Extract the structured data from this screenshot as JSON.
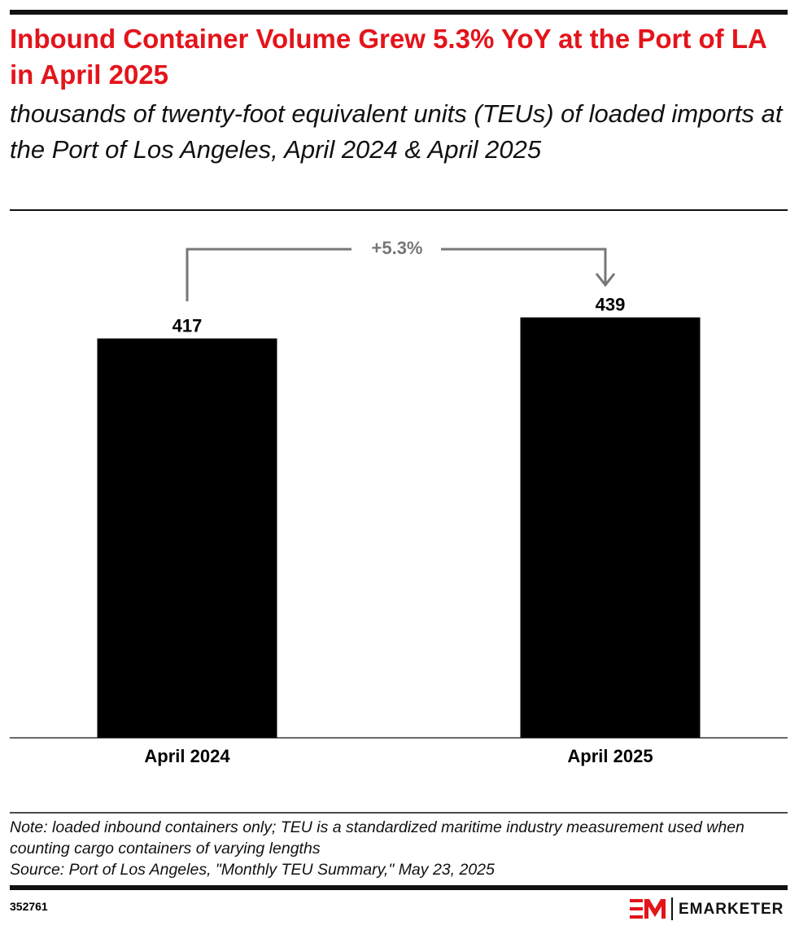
{
  "chart_data": {
    "type": "bar",
    "title": "Inbound Container Volume Grew 5.3% YoY at the Port of LA in April 2025",
    "subtitle": "thousands of twenty-foot equivalent units (TEUs) of loaded imports at the Port of Los Angeles, April 2024 & April 2025",
    "categories": [
      "April 2024",
      "April 2025"
    ],
    "values": [
      417,
      439
    ],
    "color": "#000000",
    "ylim": [
      0,
      500
    ],
    "annotations": [
      "+5.3%"
    ],
    "note": "Note: loaded inbound containers only; TEU is a standardized maritime industry measurement used when counting cargo containers of varying lengths",
    "source": "Source: Port of Los Angeles, \"Monthly TEU Summary,\" May 23, 2025",
    "chart_id": "352761",
    "brand": "EMARKETER"
  }
}
